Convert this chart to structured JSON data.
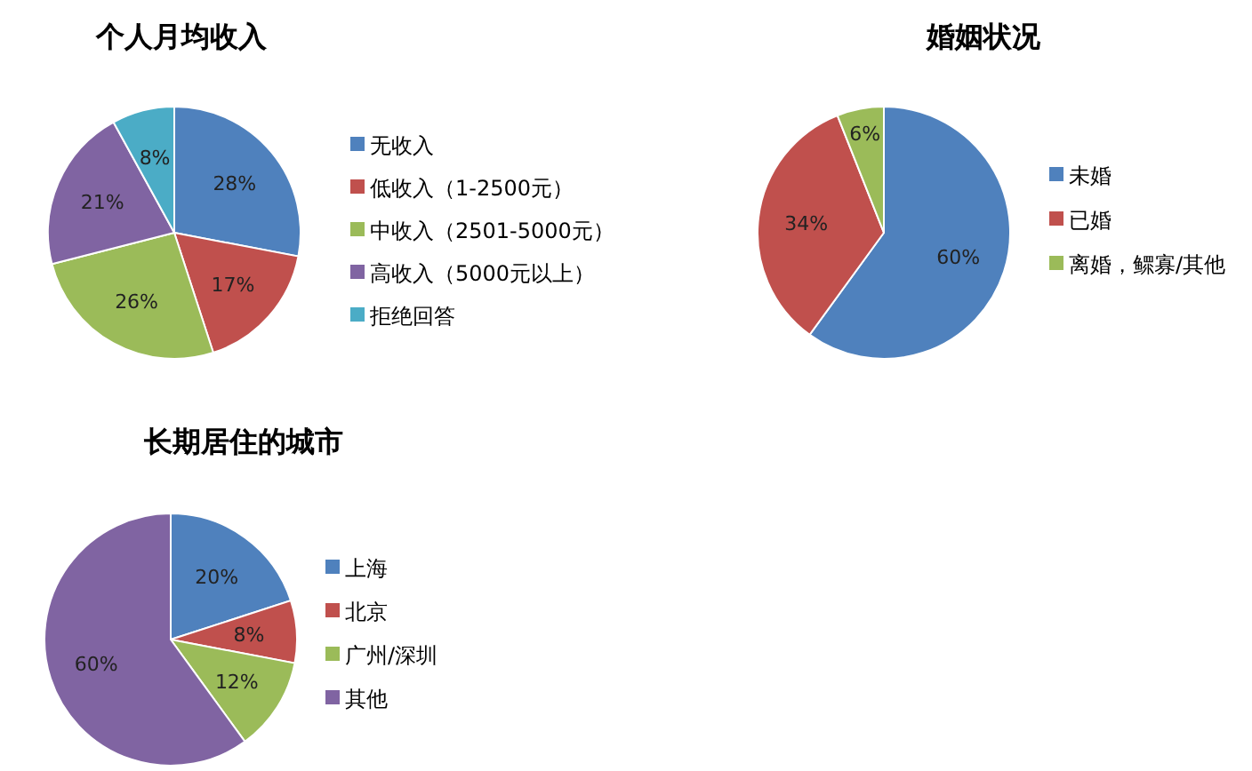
{
  "chart_data": [
    {
      "type": "pie",
      "title": "个人月均收入",
      "categories": [
        "无收入",
        "低收入（1-2500元）",
        "中收入（2501-5000元）",
        "高收入（5000元以上）",
        "拒绝回答"
      ],
      "values": [
        28,
        17,
        26,
        21,
        8
      ],
      "colors": [
        "#4f81bd",
        "#c0504d",
        "#9bbb59",
        "#8064a2",
        "#4bacc6"
      ],
      "value_labels": [
        "28%",
        "17%",
        "26%",
        "21%",
        "8%"
      ],
      "legend": "right"
    },
    {
      "type": "pie",
      "title": "婚姻状况",
      "categories": [
        "未婚",
        "已婚",
        "离婚，鳏寡/其他"
      ],
      "values": [
        60,
        34,
        6
      ],
      "colors": [
        "#4f81bd",
        "#c0504d",
        "#9bbb59"
      ],
      "value_labels": [
        "60%",
        "34%",
        "6%"
      ],
      "legend": "right"
    },
    {
      "type": "pie",
      "title": "长期居住的城市",
      "categories": [
        "上海",
        "北京",
        "广州/深圳",
        "其他"
      ],
      "values": [
        20,
        8,
        12,
        60
      ],
      "colors": [
        "#4f81bd",
        "#c0504d",
        "#9bbb59",
        "#8064a2"
      ],
      "value_labels": [
        "20%",
        "8%",
        "12%",
        "60%"
      ],
      "legend": "right"
    }
  ]
}
